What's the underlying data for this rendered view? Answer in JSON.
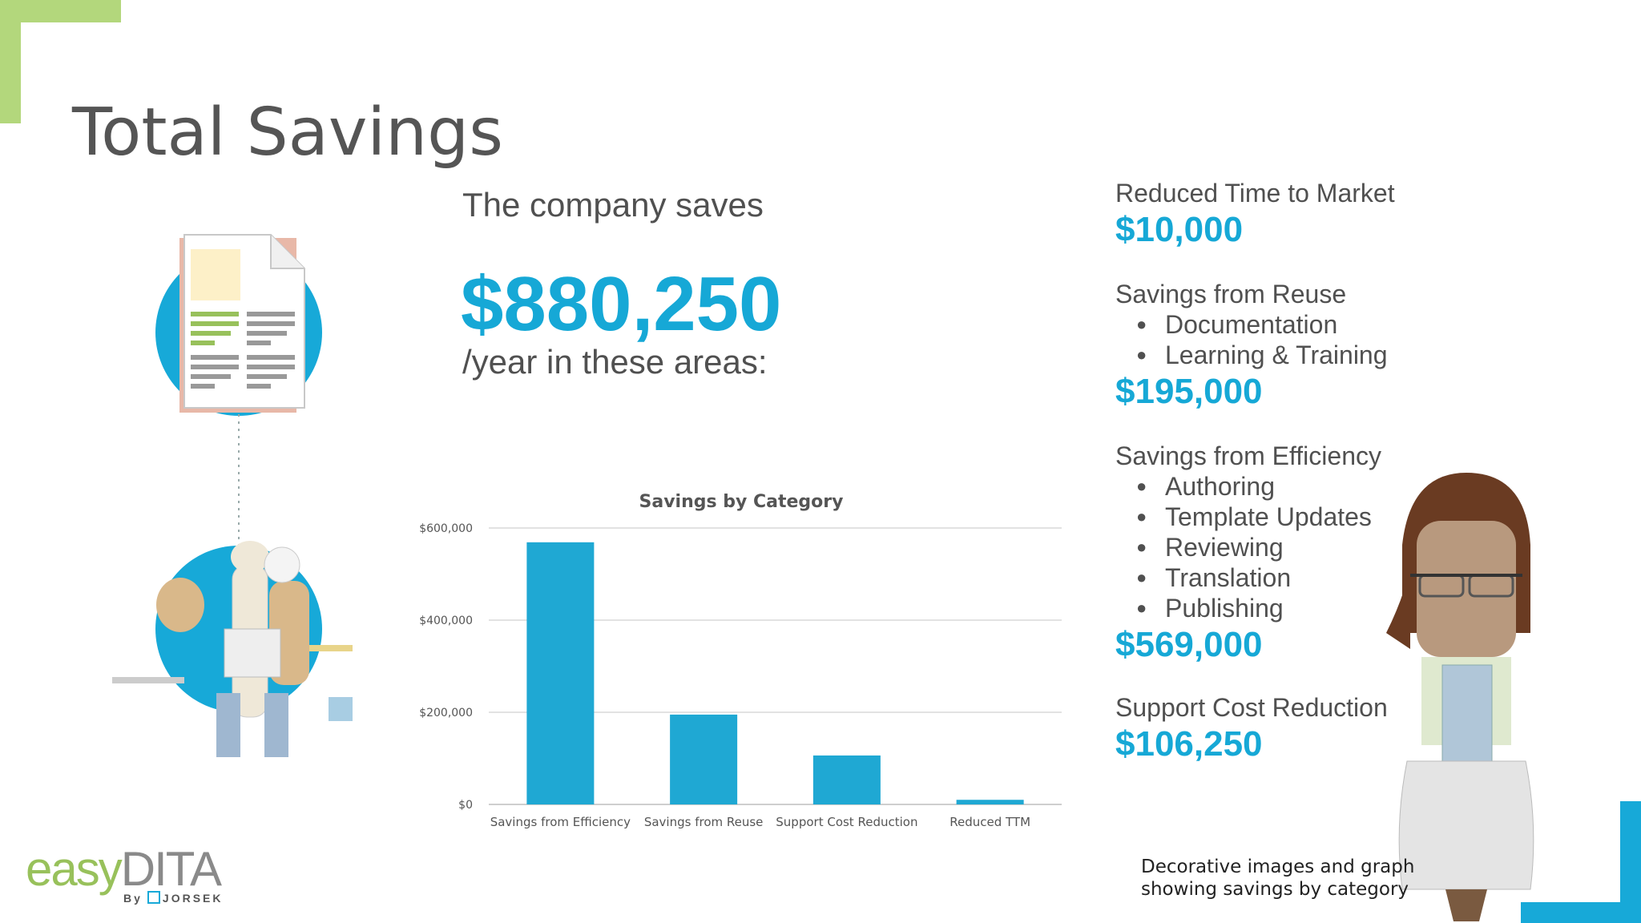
{
  "slide": {
    "title": "Total Savings",
    "intro": "The company saves",
    "total": "$880,250",
    "suffix": "/year in these areas:",
    "note_lines": [
      "Decorative images and graph",
      "showing savings by category"
    ]
  },
  "categories": [
    {
      "title": "Reduced Time to Market",
      "items": [],
      "amount": "$10,000"
    },
    {
      "title": "Savings from Reuse",
      "items": [
        "Documentation",
        "Learning & Training"
      ],
      "amount": "$195,000"
    },
    {
      "title": "Savings from Efficiency",
      "items": [
        "Authoring",
        "Template Updates",
        "Reviewing",
        "Translation",
        "Publishing"
      ],
      "amount": "$569,000"
    },
    {
      "title": "Support Cost Reduction",
      "items": [],
      "amount": "$106,250"
    }
  ],
  "logo": {
    "easy": "easy",
    "dita": "DITA",
    "by": "By",
    "company": "JORSEK"
  },
  "colors": {
    "accent": "#16a8d6",
    "green": "#b3d77c",
    "bar": "#1fa8d3",
    "text": "#505050"
  },
  "chart_data": {
    "type": "bar",
    "title": "Savings by Category",
    "categories": [
      "Savings from Efficiency",
      "Savings from Reuse",
      "Support Cost Reduction",
      "Reduced TTM"
    ],
    "values": [
      569000,
      195000,
      106250,
      10000
    ],
    "ylim": [
      0,
      600000
    ],
    "yticks": [
      0,
      200000,
      400000,
      600000
    ],
    "ytick_labels": [
      "$0",
      "$200,000",
      "$400,000",
      "$600,000"
    ],
    "xlabel": "",
    "ylabel": "",
    "grid": true
  }
}
